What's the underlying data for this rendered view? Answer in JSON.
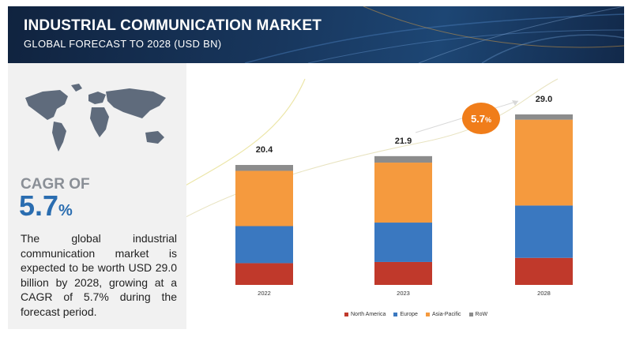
{
  "header": {
    "title": "INDUSTRIAL COMMUNICATION MARKET",
    "subtitle": "GLOBAL FORECAST TO 2028 (USD BN)"
  },
  "summary": {
    "cagr_label": "CAGR OF",
    "cagr_value": "5.7",
    "cagr_unit": "%",
    "description": "The global industrial communication market is expected to be worth USD 29.0 billion by 2028, growing at a CAGR of 5.7% during the forecast period."
  },
  "badge": {
    "value": "5.7",
    "unit": "%",
    "color": "#f07d1a"
  },
  "colors": {
    "North America": "#c0392b",
    "Europe": "#3a78c0",
    "Asia-Pacific": "#f59a3e",
    "RoW": "#8c8c8c",
    "header_bg": "#16325a",
    "accent": "#2a6db0"
  },
  "chart_data": {
    "type": "bar",
    "stacked": true,
    "categories": [
      "2022",
      "2023",
      "2028"
    ],
    "totals": [
      "20.4",
      "21.9",
      "29.0"
    ],
    "series": [
      {
        "name": "North America",
        "values": [
          3.7,
          3.9,
          4.6
        ]
      },
      {
        "name": "Europe",
        "values": [
          6.3,
          6.7,
          8.9
        ]
      },
      {
        "name": "Asia-Pacific",
        "values": [
          9.4,
          10.2,
          14.6
        ]
      },
      {
        "name": "RoW",
        "values": [
          1.0,
          1.1,
          0.9
        ]
      }
    ],
    "ylim": [
      0,
      30
    ],
    "legend_position": "bottom"
  }
}
